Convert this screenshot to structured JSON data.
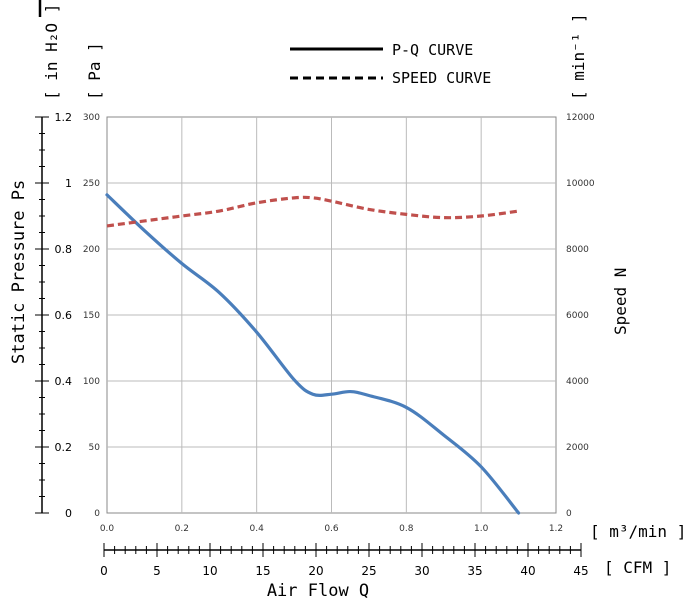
{
  "chart_data": {
    "type": "line",
    "legend": {
      "position": "top-center",
      "items": [
        {
          "label": "P-Q CURVE",
          "style": "solid",
          "color": "#000000"
        },
        {
          "label": "SPEED CURVE",
          "style": "dashed",
          "color": "#000000"
        }
      ]
    },
    "x_axis": {
      "label": "Air Flow Q",
      "primary": {
        "unit": "[ m³/min ]",
        "range": [
          0,
          1.2
        ],
        "ticks": [
          "0.0",
          "0.2",
          "0.4",
          "0.6",
          "0.8",
          "1.0",
          "1.2"
        ]
      },
      "secondary": {
        "unit": "[ CFM ]",
        "range": [
          0,
          45
        ],
        "ticks": [
          "0",
          "5",
          "10",
          "15",
          "20",
          "25",
          "30",
          "35",
          "40",
          "45"
        ]
      }
    },
    "y_axis_left": {
      "label": "Static Pressure Ps",
      "outer_unit": "[ in H₂O ]",
      "outer_range": [
        0,
        1.2
      ],
      "outer_ticks": [
        "0",
        "0.2",
        "0.4",
        "0.6",
        "0.8",
        "1",
        "1.2"
      ],
      "inner_unit": "[ Pa ]",
      "inner_range": [
        0,
        300
      ],
      "inner_ticks": [
        "0",
        "50",
        "100",
        "150",
        "200",
        "250",
        "300"
      ]
    },
    "y_axis_right": {
      "label": "Speed N",
      "unit": "[ min⁻¹ ]",
      "range": [
        0,
        12000
      ],
      "ticks": [
        "0",
        "2000",
        "4000",
        "6000",
        "8000",
        "10000",
        "12000"
      ]
    },
    "grid": true,
    "series": [
      {
        "name": "P-Q CURVE",
        "axis": "left-Pa",
        "color": "#4a7ebb",
        "style": "solid",
        "x": [
          0.0,
          0.1,
          0.2,
          0.3,
          0.4,
          0.5,
          0.55,
          0.6,
          0.65,
          0.7,
          0.8,
          0.9,
          1.0,
          1.1
        ],
        "y": [
          241,
          214,
          189,
          167,
          137,
          101,
          90,
          90,
          92,
          89,
          80,
          59,
          35,
          0
        ]
      },
      {
        "name": "SPEED CURVE",
        "axis": "right",
        "color": "#c0504d",
        "style": "dashed",
        "x": [
          0.0,
          0.1,
          0.2,
          0.3,
          0.4,
          0.5,
          0.55,
          0.6,
          0.7,
          0.8,
          0.9,
          1.0,
          1.1
        ],
        "y": [
          8700,
          8850,
          9000,
          9150,
          9400,
          9550,
          9550,
          9450,
          9200,
          9050,
          8950,
          9000,
          9150
        ]
      }
    ]
  }
}
